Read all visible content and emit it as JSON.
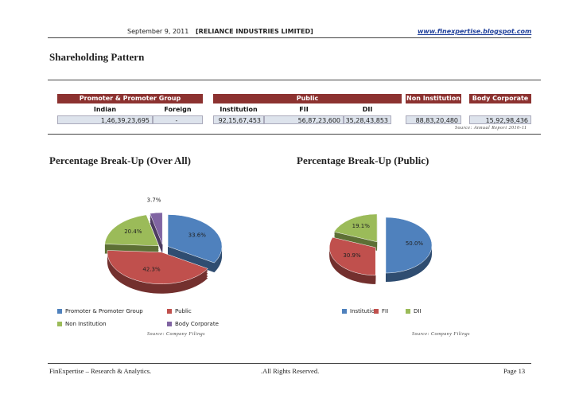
{
  "header": {
    "date": "September 9, 2011",
    "company": "[RELIANCE INDUSTRIES LIMITED]",
    "website": "www.finexpertise.blogspot.com"
  },
  "section_title": "Shareholding Pattern",
  "table": {
    "groups": [
      "Promoter & Promoter Group",
      "Public",
      "Non Institution",
      "Body Corporate"
    ],
    "columns": [
      "Indian",
      "Foreign",
      "Institution",
      "FII",
      "DII"
    ],
    "values": [
      "1,46,39,23,695",
      "-",
      "92,15,67,453",
      "56,87,23,600",
      "35,28,43,853",
      "88,83,20,480",
      "15,92,98,436"
    ],
    "source": "Source: Annual Report 2010-11"
  },
  "chart_data": [
    {
      "type": "pie",
      "title": "Percentage Break-Up (Over All)",
      "categories": [
        "Promoter & Promoter Group",
        "Public",
        "Non Institution",
        "Body Corporate"
      ],
      "values": [
        33.6,
        42.3,
        20.4,
        3.7
      ],
      "value_labels": [
        "33.6%",
        "42.3%",
        "20.4%",
        "3.7%"
      ],
      "colors": [
        "#4f81bd",
        "#c0504d",
        "#9bbb59",
        "#8064a2"
      ],
      "source": "Source: Company Filings"
    },
    {
      "type": "pie",
      "title": "Percentage Break-Up (Public)",
      "categories": [
        "Institution",
        "FII",
        "DII"
      ],
      "values": [
        50.0,
        30.9,
        19.1
      ],
      "value_labels": [
        "50.0%",
        "30.9%",
        "19.1%"
      ],
      "colors": [
        "#4f81bd",
        "#c0504d",
        "#9bbb59"
      ],
      "source": "Source: Company Filings"
    }
  ],
  "footer": {
    "left": "FinExpertise – Research & Analytics.",
    "center": ".All Rights Reserved.",
    "page": "Page 13"
  }
}
